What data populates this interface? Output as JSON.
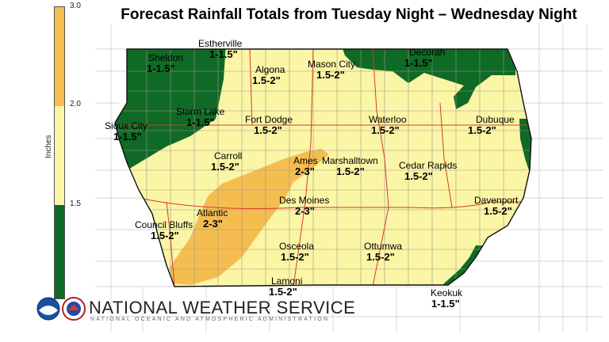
{
  "title": "Forecast Rainfall Totals from Tuesday Night – Wednesday Night",
  "legend": {
    "unit": "Inches",
    "ticks": [
      "3.0",
      "2.0",
      "1.5"
    ],
    "colors": {
      "high": "#f5bd50",
      "mid": "#fbf5a6",
      "low": "#0f6a25"
    }
  },
  "cities": [
    {
      "id": "estherville",
      "name": "Estherville",
      "amount": "1-1.5\""
    },
    {
      "id": "sheldon",
      "name": "Sheldon",
      "amount": "1-1.5\""
    },
    {
      "id": "algona",
      "name": "Algona",
      "amount": "1.5-2\""
    },
    {
      "id": "mason-city",
      "name": "Mason City",
      "amount": "1.5-2\""
    },
    {
      "id": "decorah",
      "name": "Decorah",
      "amount": "1-1.5\""
    },
    {
      "id": "storm-lake",
      "name": "Storm Lake",
      "amount": "1-1.5\""
    },
    {
      "id": "fort-dodge",
      "name": "Fort Dodge",
      "amount": "1.5-2\""
    },
    {
      "id": "waterloo",
      "name": "Waterloo",
      "amount": "1.5-2\""
    },
    {
      "id": "dubuque",
      "name": "Dubuque",
      "amount": "1.5-2\""
    },
    {
      "id": "sioux-city",
      "name": "Sioux City",
      "amount": "1-1.5\""
    },
    {
      "id": "carroll",
      "name": "Carroll",
      "amount": "1.5-2\""
    },
    {
      "id": "ames",
      "name": "Ames",
      "amount": "2-3\""
    },
    {
      "id": "marshalltown",
      "name": "Marshalltown",
      "amount": "1.5-2\""
    },
    {
      "id": "cedar-rapids",
      "name": "Cedar Rapids",
      "amount": "1.5-2\""
    },
    {
      "id": "des-moines",
      "name": "Des Moines",
      "amount": "2-3\""
    },
    {
      "id": "atlantic",
      "name": "Atlantic",
      "amount": "2-3\""
    },
    {
      "id": "council-bluffs",
      "name": "Council Bluffs",
      "amount": "1.5-2\""
    },
    {
      "id": "davenport",
      "name": "Davenport",
      "amount": "1.5-2\""
    },
    {
      "id": "osceola",
      "name": "Osceola",
      "amount": "1.5-2\""
    },
    {
      "id": "ottumwa",
      "name": "Ottumwa",
      "amount": "1.5-2\""
    },
    {
      "id": "lamoni",
      "name": "Lamoni",
      "amount": "1.5-2\""
    },
    {
      "id": "keokuk",
      "name": "Keokuk",
      "amount": "1-1.5\""
    }
  ],
  "branding": {
    "name": "NATIONAL WEATHER SERVICE",
    "subtitle": "NATIONAL OCEANIC AND ATMOSPHERIC ADMINISTRATION",
    "icons": [
      "noaa-logo-icon",
      "nws-logo-icon"
    ]
  }
}
